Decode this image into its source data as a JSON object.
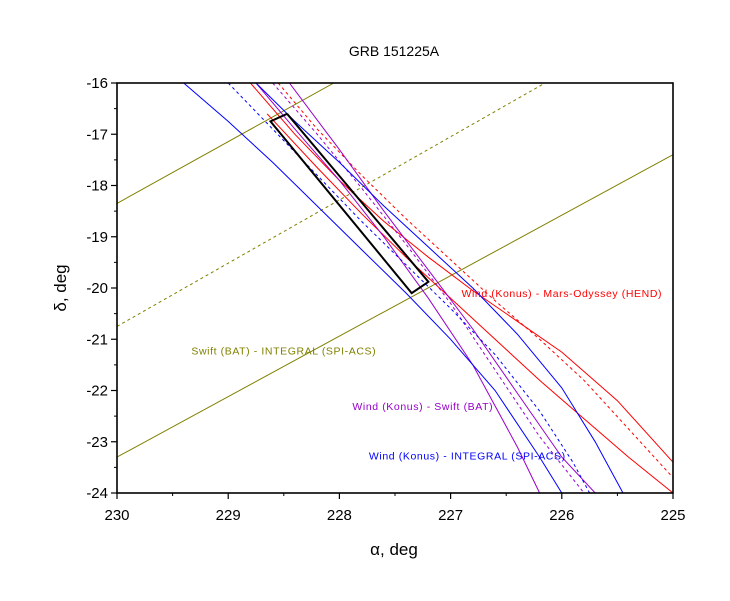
{
  "chart_data": {
    "type": "line",
    "title": "GRB 151225A",
    "xlabel": "α, deg",
    "ylabel": "δ, deg",
    "xlim": [
      230,
      225
    ],
    "ylim": [
      -24,
      -16
    ],
    "x_ticks": [
      230,
      229,
      228,
      227,
      226,
      225
    ],
    "x_tick_labels": [
      "230",
      "229",
      "228",
      "227",
      "226",
      "225"
    ],
    "y_ticks": [
      -16,
      -17,
      -18,
      -19,
      -20,
      -21,
      -22,
      -23,
      -24
    ],
    "y_tick_labels": [
      "-16",
      "-17",
      "-18",
      "-19",
      "-20",
      "-21",
      "-22",
      "-23",
      "-24"
    ],
    "grid": false,
    "series": [
      {
        "group": "swift-integral",
        "style": "solid",
        "color": "#808000",
        "x": [
          230,
          228.05
        ],
        "y": [
          -18.35,
          -16.0
        ]
      },
      {
        "group": "swift-integral",
        "style": "dashed",
        "color": "#808000",
        "x": [
          230,
          226.15
        ],
        "y": [
          -20.75,
          -16.0
        ]
      },
      {
        "group": "swift-integral",
        "style": "solid",
        "color": "#808000",
        "x": [
          230,
          225
        ],
        "y": [
          -23.3,
          -17.4
        ]
      },
      {
        "group": "konus-hend",
        "style": "solid",
        "color": "#ff0000",
        "x": [
          228.8,
          228.4,
          228.0,
          227.6,
          227.2,
          226.8,
          226.4,
          226.0,
          225.5,
          225.0
        ],
        "y": [
          -16.0,
          -17.0,
          -17.9,
          -18.7,
          -19.4,
          -20.05,
          -20.65,
          -21.25,
          -22.2,
          -23.4
        ]
      },
      {
        "group": "konus-hend",
        "style": "dashed",
        "color": "#ff0000",
        "x": [
          228.55,
          228.2,
          227.8,
          227.4,
          227.0,
          226.6,
          226.2,
          225.8,
          225.4,
          225.0
        ],
        "y": [
          -16.0,
          -16.9,
          -17.8,
          -18.65,
          -19.45,
          -20.25,
          -21.0,
          -21.8,
          -22.75,
          -23.7
        ]
      },
      {
        "group": "konus-hend",
        "style": "solid",
        "color": "#ff0000",
        "x": [
          228.65,
          228.2,
          227.8,
          227.4,
          227.0,
          226.6,
          226.2,
          225.8,
          225.4,
          225.0
        ],
        "y": [
          -16.6,
          -17.65,
          -18.55,
          -19.4,
          -20.2,
          -21.0,
          -21.8,
          -22.55,
          -23.3,
          -24.0
        ]
      },
      {
        "group": "konus-bat",
        "style": "solid",
        "color": "#9900cc",
        "x": [
          228.75,
          228.4,
          228.0,
          227.6,
          227.2,
          226.8,
          226.4,
          226.2
        ],
        "y": [
          -16.0,
          -16.9,
          -17.9,
          -19.0,
          -20.2,
          -21.5,
          -23.1,
          -24.0
        ]
      },
      {
        "group": "konus-bat",
        "style": "dashed",
        "color": "#9900cc",
        "x": [
          228.6,
          228.2,
          227.8,
          227.4,
          227.0,
          226.6,
          226.2,
          225.8
        ],
        "y": [
          -16.0,
          -17.0,
          -18.05,
          -19.15,
          -20.3,
          -21.6,
          -22.9,
          -24.0
        ]
      },
      {
        "group": "konus-bat",
        "style": "solid",
        "color": "#9900cc",
        "x": [
          228.45,
          228.0,
          227.6,
          227.2,
          226.8,
          226.4,
          226.0,
          225.7
        ],
        "y": [
          -16.0,
          -17.3,
          -18.5,
          -19.65,
          -20.8,
          -22.05,
          -23.3,
          -24.0
        ]
      },
      {
        "group": "konus-integral",
        "style": "solid",
        "color": "#0000ff",
        "x": [
          229.4,
          229.0,
          228.6,
          228.2,
          227.8,
          227.4,
          227.0,
          226.6,
          226.2,
          226.0
        ],
        "y": [
          -16.0,
          -16.75,
          -17.55,
          -18.4,
          -19.25,
          -20.1,
          -21.0,
          -22.0,
          -23.3,
          -24.0
        ]
      },
      {
        "group": "konus-integral",
        "style": "dashed",
        "color": "#0000ff",
        "x": [
          229.0,
          228.6,
          228.2,
          227.8,
          227.4,
          227.0,
          226.6,
          226.2,
          225.9,
          225.75
        ],
        "y": [
          -16.0,
          -16.9,
          -17.8,
          -18.7,
          -19.55,
          -20.4,
          -21.3,
          -22.4,
          -23.4,
          -24.0
        ]
      },
      {
        "group": "konus-integral",
        "style": "solid",
        "color": "#0000ff",
        "x": [
          228.75,
          228.4,
          228.0,
          227.6,
          227.2,
          226.8,
          226.4,
          226.0,
          225.7,
          225.45
        ],
        "y": [
          -16.0,
          -16.75,
          -17.55,
          -18.4,
          -19.2,
          -20.0,
          -20.9,
          -21.95,
          -23.0,
          -24.0
        ]
      }
    ],
    "error_box": {
      "color": "#000000",
      "x": [
        228.47,
        227.2,
        227.35,
        228.62,
        228.47
      ],
      "y": [
        -16.6,
        -19.88,
        -20.1,
        -16.75,
        -16.6
      ]
    },
    "annotations": [
      {
        "text": "Wind (Konus) - Mars-Odyssey (HEND)",
        "color": "#ff0000",
        "x": 226.0,
        "y": -20.18
      },
      {
        "text": "Swift (BAT) - INTEGRAL (SPI-ACS)",
        "color": "#808000",
        "x": 228.5,
        "y": -21.3
      },
      {
        "text": "Wind (Konus) - Swift (BAT)",
        "color": "#9900cc",
        "x": 227.25,
        "y": -22.38
      },
      {
        "text": "Wind (Konus) - INTEGRAL (SPI-ACS)",
        "color": "#0000ff",
        "x": 226.85,
        "y": -23.35
      }
    ]
  }
}
